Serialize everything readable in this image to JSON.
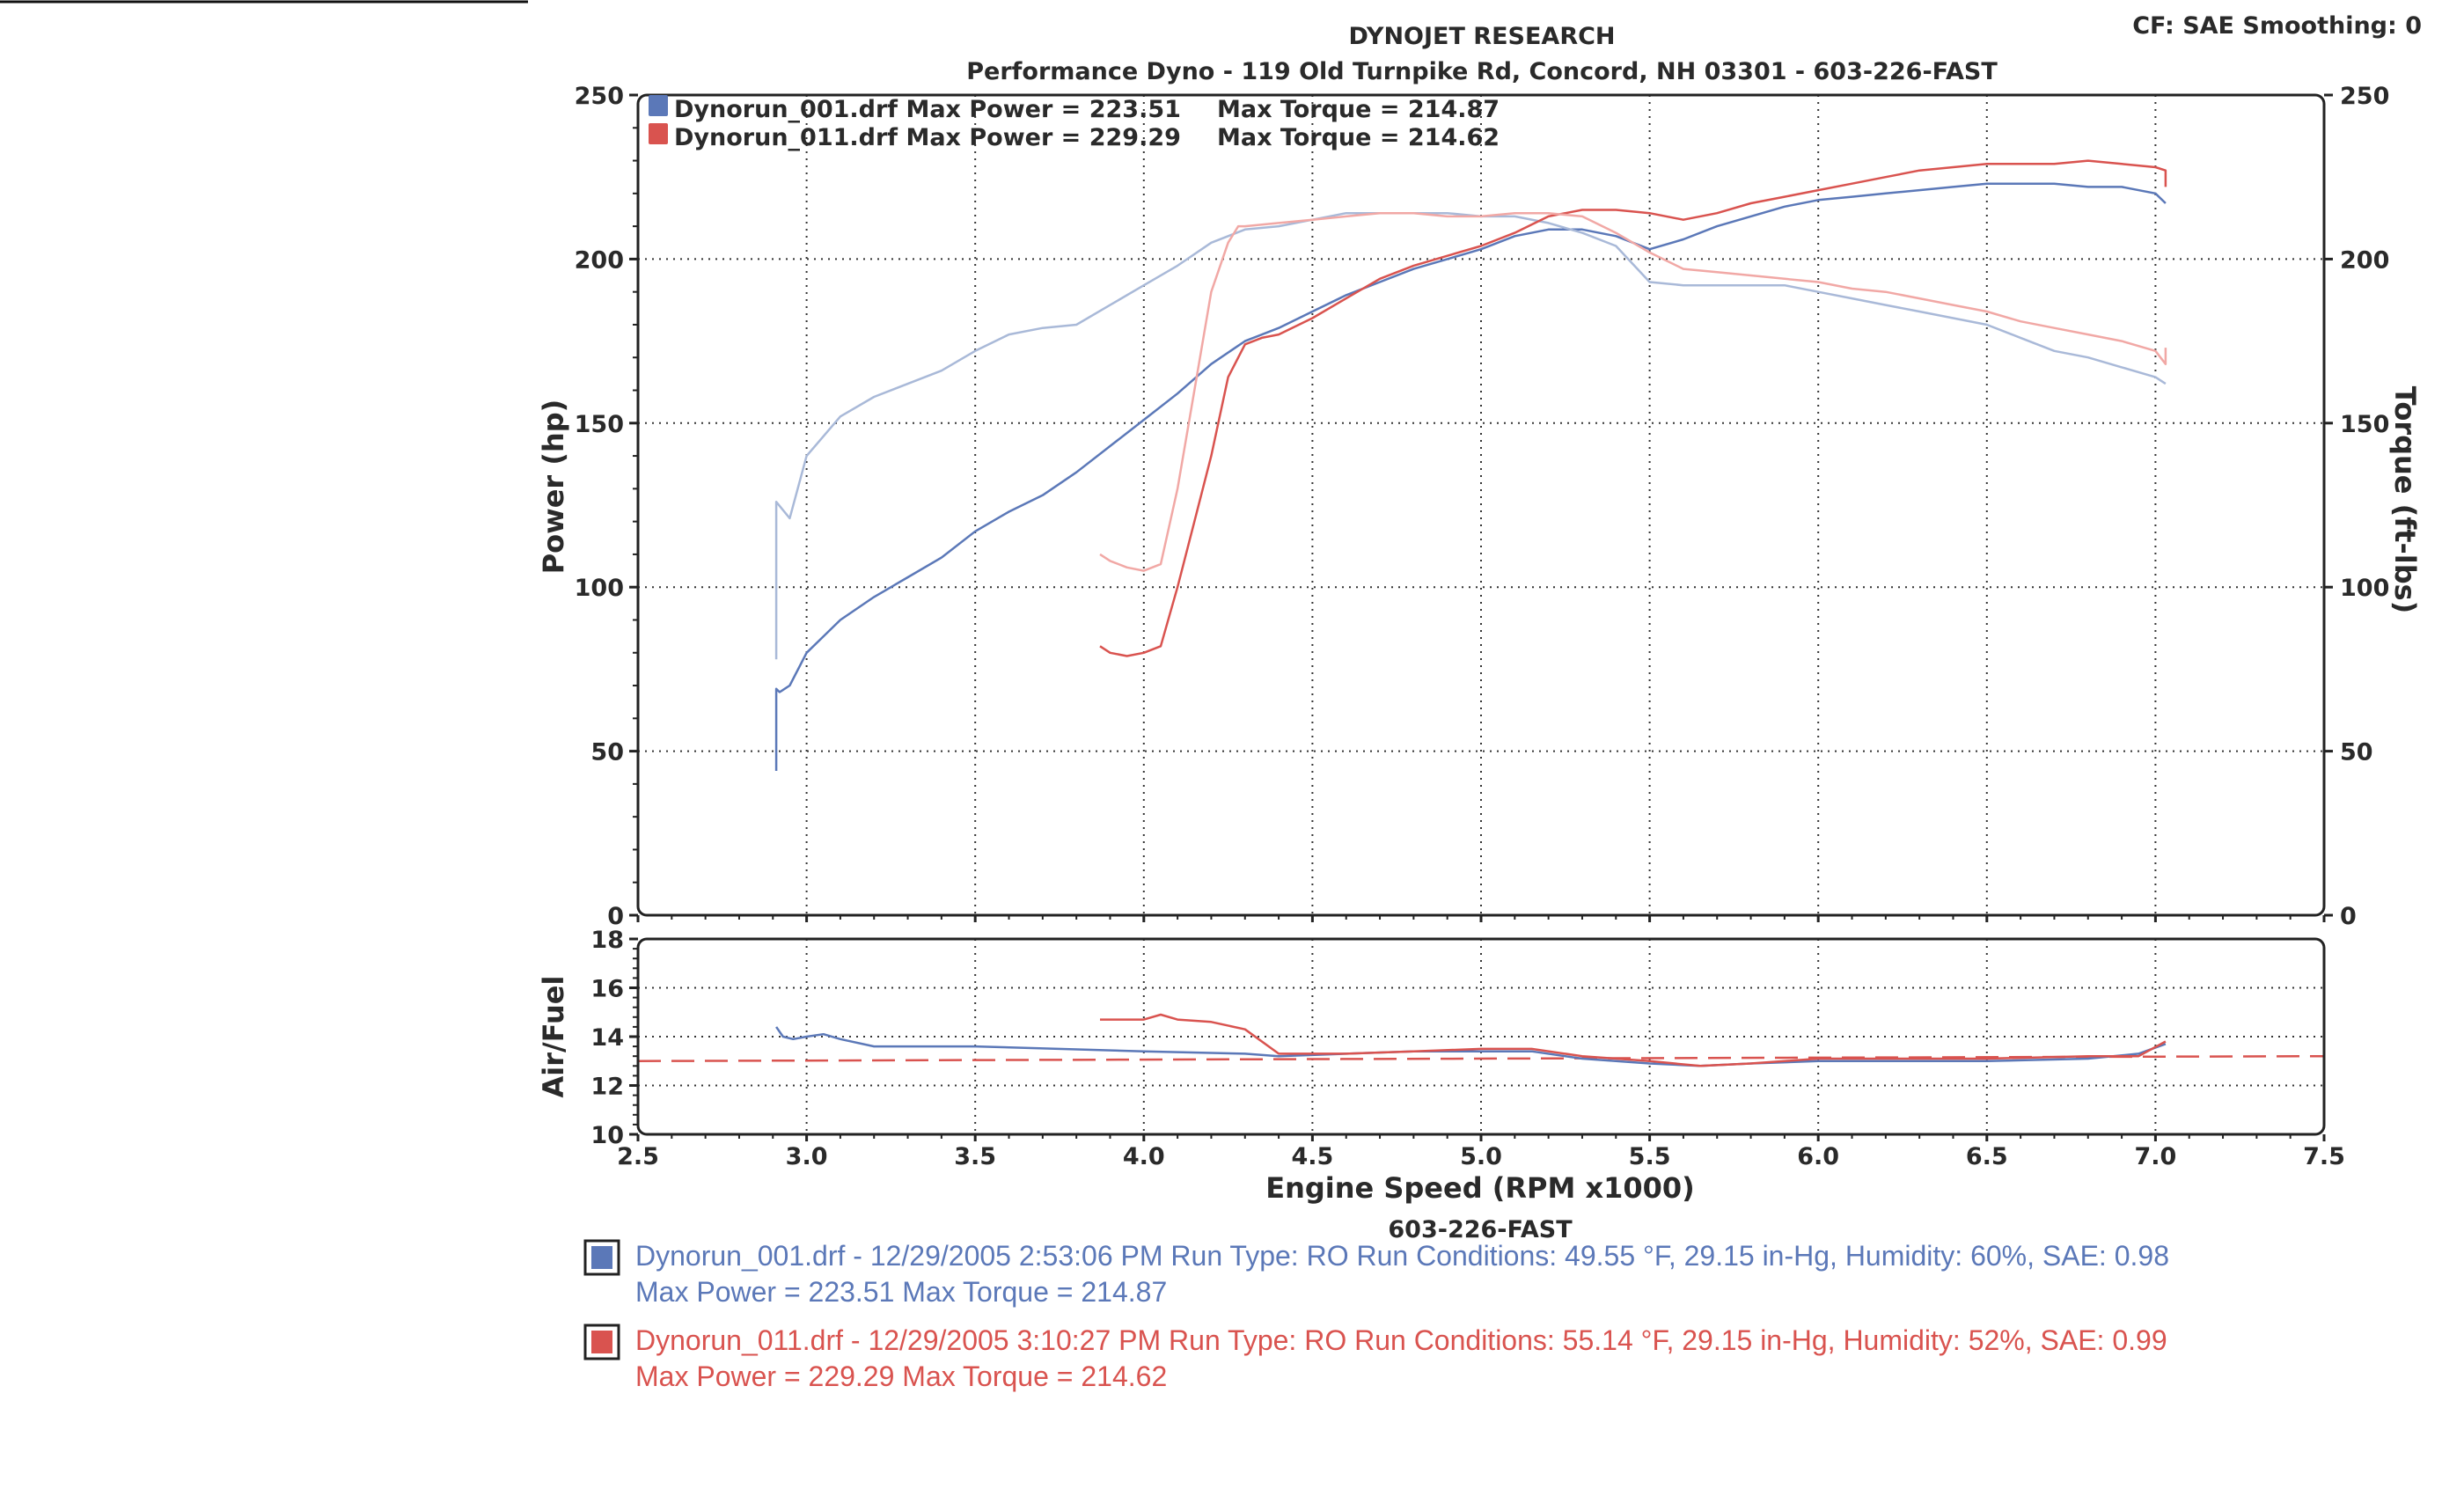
{
  "header": {
    "title": "DYNOJET RESEARCH",
    "subtitle": "Performance Dyno - 119 Old Turnpike Rd, Concord, NH 03301 - 603-226-FAST",
    "settings": "CF: SAE  Smoothing: 0"
  },
  "footer": {
    "caption": "603-226-FAST",
    "runs": [
      {
        "line1": "Dynorun_001.drf - 12/29/2005 2:53:06 PM  Run Type: RO  Run Conditions: 49.55 °F, 29.15 in-Hg,  Humidity:  60%, SAE: 0.98",
        "line2": "Max Power = 223.51  Max Torque = 214.87"
      },
      {
        "line1": "Dynorun_011.drf - 12/29/2005 3:10:27 PM  Run Type: RO  Run Conditions: 55.14 °F, 29.15 in-Hg,  Humidity:  52%, SAE: 0.99",
        "line2": "Max Power = 229.29  Max Torque = 214.62"
      }
    ]
  },
  "colors": {
    "run_001": "#5b78b8",
    "run_001_light": "#a9b9d8",
    "run_011": "#d9534f",
    "run_011_light": "#f1a8a5",
    "frame": "#222222"
  },
  "chart_data": [
    {
      "type": "line",
      "name": "power-torque",
      "xlabel": "Engine Speed (RPM x1000)",
      "ylabel": "Power (hp)",
      "y2label": "Torque (ft-lbs)",
      "xlim": [
        2.5,
        7.5
      ],
      "ylim": [
        0,
        250
      ],
      "y2lim": [
        0,
        250
      ],
      "x_ticks": [
        "2.5",
        "3.0",
        "3.5",
        "4.0",
        "4.5",
        "5.0",
        "5.5",
        "6.0",
        "6.5",
        "7.0",
        "7.5"
      ],
      "y_ticks": [
        "0",
        "50",
        "100",
        "150",
        "200",
        "250"
      ],
      "y2_ticks": [
        "0",
        "50",
        "100",
        "150",
        "200",
        "250"
      ],
      "grid": true,
      "legend_position": "top-left",
      "legend": [
        {
          "file": "Dynorun_001.drf",
          "text": "Max Power = 223.51",
          "torque_text": "Max Torque = 214.87"
        },
        {
          "file": "Dynorun_011.drf",
          "text": "Max Power = 229.29",
          "torque_text": "Max Torque = 214.62"
        }
      ],
      "series": [
        {
          "run": "001",
          "kind": "power",
          "color": "#5b78b8",
          "x": [
            2.91,
            2.91,
            2.92,
            2.95,
            3.0,
            3.05,
            3.1,
            3.2,
            3.3,
            3.4,
            3.5,
            3.6,
            3.7,
            3.8,
            3.9,
            4.0,
            4.1,
            4.2,
            4.3,
            4.4,
            4.5,
            4.6,
            4.7,
            4.8,
            4.9,
            5.0,
            5.1,
            5.2,
            5.3,
            5.4,
            5.5,
            5.6,
            5.7,
            5.8,
            5.9,
            6.0,
            6.1,
            6.2,
            6.3,
            6.4,
            6.5,
            6.6,
            6.7,
            6.8,
            6.9,
            7.0,
            7.03
          ],
          "y": [
            44,
            69,
            68,
            70,
            80,
            85,
            90,
            97,
            103,
            109,
            117,
            123,
            128,
            135,
            143,
            151,
            159,
            168,
            175,
            179,
            184,
            189,
            193,
            197,
            200,
            203,
            207,
            209,
            209,
            207,
            203,
            206,
            210,
            213,
            216,
            218,
            219,
            220,
            221,
            222,
            223,
            223,
            223,
            222,
            222,
            220,
            217
          ]
        },
        {
          "run": "001",
          "kind": "torque",
          "color": "#a9b9d8",
          "x": [
            2.91,
            2.91,
            2.95,
            3.0,
            3.05,
            3.1,
            3.2,
            3.3,
            3.4,
            3.5,
            3.6,
            3.7,
            3.8,
            3.9,
            4.0,
            4.1,
            4.2,
            4.3,
            4.4,
            4.5,
            4.6,
            4.7,
            4.8,
            4.9,
            5.0,
            5.1,
            5.2,
            5.3,
            5.4,
            5.5,
            5.6,
            5.7,
            5.8,
            5.9,
            6.0,
            6.1,
            6.2,
            6.3,
            6.4,
            6.5,
            6.6,
            6.7,
            6.8,
            6.9,
            7.0,
            7.03
          ],
          "y": [
            78,
            126,
            121,
            140,
            146,
            152,
            158,
            162,
            166,
            172,
            177,
            179,
            180,
            186,
            192,
            198,
            205,
            209,
            210,
            212,
            214,
            214,
            214,
            214,
            213,
            213,
            211,
            208,
            204,
            193,
            192,
            192,
            192,
            192,
            190,
            188,
            186,
            184,
            182,
            180,
            176,
            172,
            170,
            167,
            164,
            162
          ]
        },
        {
          "run": "011",
          "kind": "power",
          "color": "#d9534f",
          "x": [
            3.87,
            3.9,
            3.95,
            4.0,
            4.05,
            4.1,
            4.15,
            4.2,
            4.25,
            4.3,
            4.35,
            4.4,
            4.5,
            4.6,
            4.7,
            4.8,
            4.9,
            5.0,
            5.1,
            5.2,
            5.3,
            5.4,
            5.5,
            5.6,
            5.7,
            5.8,
            5.9,
            6.0,
            6.1,
            6.2,
            6.3,
            6.4,
            6.5,
            6.6,
            6.7,
            6.8,
            6.9,
            7.0,
            7.03,
            7.03
          ],
          "y": [
            82,
            80,
            79,
            80,
            82,
            100,
            120,
            140,
            164,
            174,
            176,
            177,
            182,
            188,
            194,
            198,
            201,
            204,
            208,
            213,
            215,
            215,
            214,
            212,
            214,
            217,
            219,
            221,
            223,
            225,
            227,
            228,
            229,
            229,
            229,
            230,
            229,
            228,
            227,
            222
          ]
        },
        {
          "run": "011",
          "kind": "torque",
          "color": "#f1a8a5",
          "x": [
            3.87,
            3.9,
            3.95,
            4.0,
            4.05,
            4.1,
            4.15,
            4.2,
            4.25,
            4.28,
            4.3,
            4.4,
            4.5,
            4.6,
            4.7,
            4.8,
            4.9,
            5.0,
            5.1,
            5.2,
            5.3,
            5.4,
            5.5,
            5.6,
            5.7,
            5.8,
            5.9,
            6.0,
            6.1,
            6.2,
            6.3,
            6.4,
            6.5,
            6.6,
            6.7,
            6.8,
            6.9,
            7.0,
            7.03,
            7.03
          ],
          "y": [
            110,
            108,
            106,
            105,
            107,
            130,
            160,
            190,
            205,
            210,
            210,
            211,
            212,
            213,
            214,
            214,
            213,
            213,
            214,
            214,
            213,
            208,
            202,
            197,
            196,
            195,
            194,
            193,
            191,
            190,
            188,
            186,
            184,
            181,
            179,
            177,
            175,
            172,
            168,
            173
          ]
        }
      ]
    },
    {
      "type": "line",
      "name": "air-fuel",
      "xlabel": "Engine Speed (RPM x1000)",
      "ylabel": "Air/Fuel",
      "xlim": [
        2.5,
        7.5
      ],
      "ylim": [
        10,
        18
      ],
      "x_ticks": [
        "2.5",
        "3.0",
        "3.5",
        "4.0",
        "4.5",
        "5.0",
        "5.5",
        "6.0",
        "6.5",
        "7.0",
        "7.5"
      ],
      "y_ticks": [
        "10",
        "12",
        "14",
        "16",
        "18"
      ],
      "grid": true,
      "reference_line": {
        "y_start": 13.0,
        "y_end": 13.2,
        "color": "#d9534f",
        "style": "dashed"
      },
      "series": [
        {
          "run": "001",
          "color": "#5b78b8",
          "x": [
            2.91,
            2.93,
            2.96,
            3.0,
            3.05,
            3.1,
            3.2,
            3.5,
            4.0,
            4.3,
            4.4,
            4.6,
            4.8,
            5.0,
            5.15,
            5.3,
            5.5,
            5.65,
            5.8,
            6.0,
            6.2,
            6.5,
            6.8,
            6.95,
            7.03
          ],
          "y": [
            14.4,
            14.0,
            13.9,
            14.0,
            14.1,
            13.9,
            13.6,
            13.6,
            13.4,
            13.3,
            13.2,
            13.3,
            13.4,
            13.4,
            13.4,
            13.1,
            12.9,
            12.8,
            12.9,
            13.0,
            13.0,
            13.0,
            13.1,
            13.3,
            13.7
          ]
        },
        {
          "run": "011",
          "color": "#d9534f",
          "x": [
            3.87,
            3.95,
            4.0,
            4.05,
            4.1,
            4.2,
            4.3,
            4.4,
            4.6,
            4.8,
            5.0,
            5.15,
            5.3,
            5.5,
            5.65,
            5.8,
            6.0,
            6.2,
            6.5,
            6.8,
            6.95,
            7.03
          ],
          "y": [
            14.7,
            14.7,
            14.7,
            14.9,
            14.7,
            14.6,
            14.3,
            13.3,
            13.3,
            13.4,
            13.5,
            13.5,
            13.2,
            13.0,
            12.8,
            12.9,
            13.1,
            13.1,
            13.1,
            13.2,
            13.2,
            13.8
          ]
        }
      ]
    }
  ]
}
